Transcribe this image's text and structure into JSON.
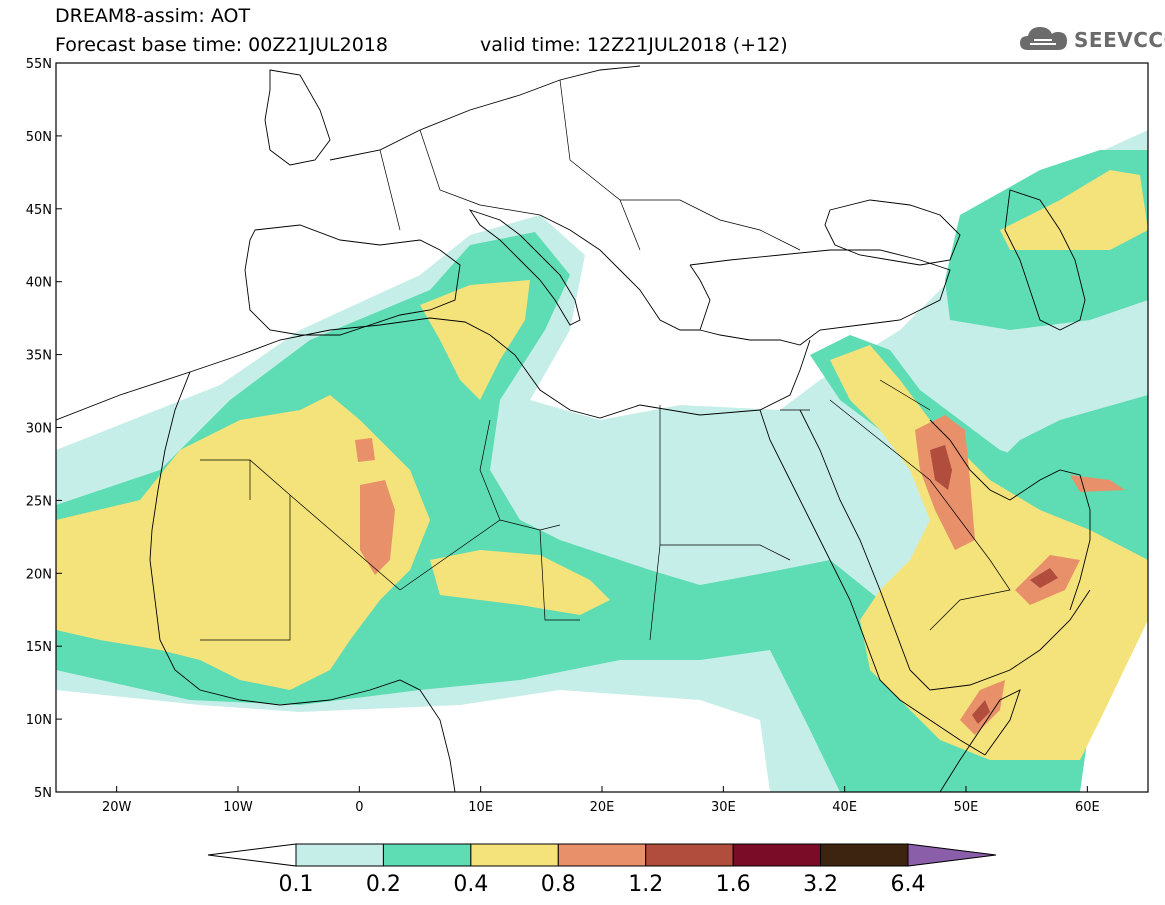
{
  "header": {
    "title": "DREAM8-assim: AOT",
    "base_time": "Forecast base time: 00Z21JUL2018",
    "valid_time": "valid time: 12Z21JUL2018 (+12)"
  },
  "logo": {
    "text": "SEEVCCC",
    "icon": "cloud-icon"
  },
  "map": {
    "lat_labels": [
      "55N",
      "50N",
      "45N",
      "40N",
      "35N",
      "30N",
      "25N",
      "20N",
      "15N",
      "10N",
      "5N"
    ],
    "lon_labels": [
      "20W",
      "10W",
      "0",
      "10E",
      "20E",
      "30E",
      "40E",
      "50E",
      "60E"
    ],
    "lon_range": [
      -25,
      65
    ],
    "lat_range": [
      5,
      55
    ]
  },
  "legend": {
    "labels": [
      "0.1",
      "0.2",
      "0.4",
      "0.8",
      "1.2",
      "1.6",
      "3.2",
      "6.4"
    ],
    "colors": [
      "#c6eee8",
      "#5edcb4",
      "#f4e37a",
      "#e8906a",
      "#b14d3c",
      "#7a0c28",
      "#3d2410",
      "#8a5ea8"
    ]
  }
}
